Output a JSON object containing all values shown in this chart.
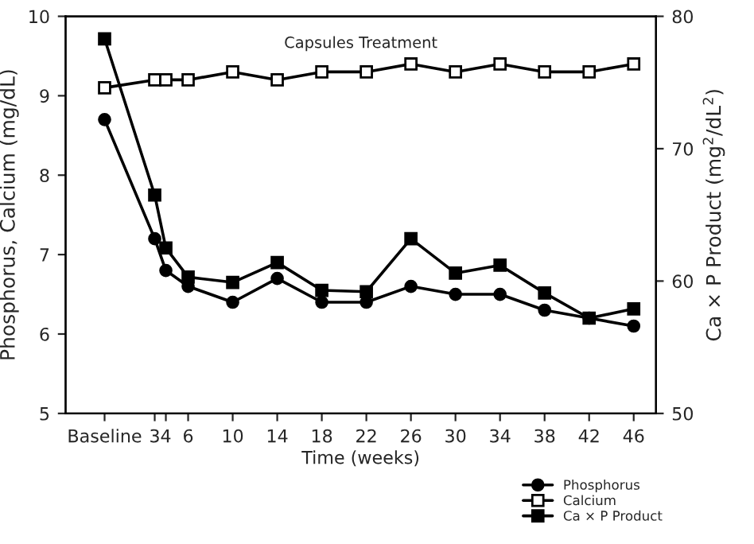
{
  "chart_data": {
    "type": "line",
    "title": "Capsules Treatment",
    "xlabel": "Time (weeks)",
    "ylabel": "Phosphorus, Calcium (mg/dL)",
    "y2label": "Ca × P Product (mg$^{2}$/dL$^{2}$)",
    "x": [
      -1.5,
      3,
      4,
      6,
      10,
      14,
      18,
      22,
      26,
      30,
      34,
      38,
      42,
      46
    ],
    "xlim": [
      -5,
      48
    ],
    "xticks": [
      {
        "value": -1.5,
        "label": "Baseline"
      },
      3,
      4,
      6,
      10,
      14,
      18,
      22,
      26,
      30,
      34,
      38,
      42,
      46
    ],
    "ylim": [
      5,
      10
    ],
    "yticks": [
      5,
      6,
      7,
      8,
      9,
      10
    ],
    "y2lim": [
      50,
      80
    ],
    "y2ticks": [
      50,
      60,
      70,
      80
    ],
    "series": [
      {
        "name": "Phosphorus",
        "color": "#000000",
        "marker": "circle",
        "values": [
          8.7,
          7.2,
          6.8,
          6.6,
          6.4,
          6.7,
          6.4,
          6.4,
          6.6,
          6.5,
          6.5,
          6.3,
          6.2,
          6.1
        ]
      },
      {
        "name": "Calcium",
        "color": "#000000",
        "marker": "square_open",
        "values": [
          9.1,
          9.2,
          9.2,
          9.2,
          9.3,
          9.2,
          9.3,
          9.3,
          9.4,
          9.3,
          9.4,
          9.3,
          9.3,
          9.4
        ]
      },
      {
        "name": "Ca × P Product",
        "color": "#000000",
        "marker": "square",
        "axis": "y2",
        "values": [
          78.3,
          66.5,
          62.5,
          60.3,
          59.9,
          61.4,
          59.3,
          59.2,
          63.2,
          60.6,
          61.2,
          59.1,
          57.2,
          57.9
        ]
      }
    ],
    "grid": false,
    "legend": "bottom right"
  }
}
